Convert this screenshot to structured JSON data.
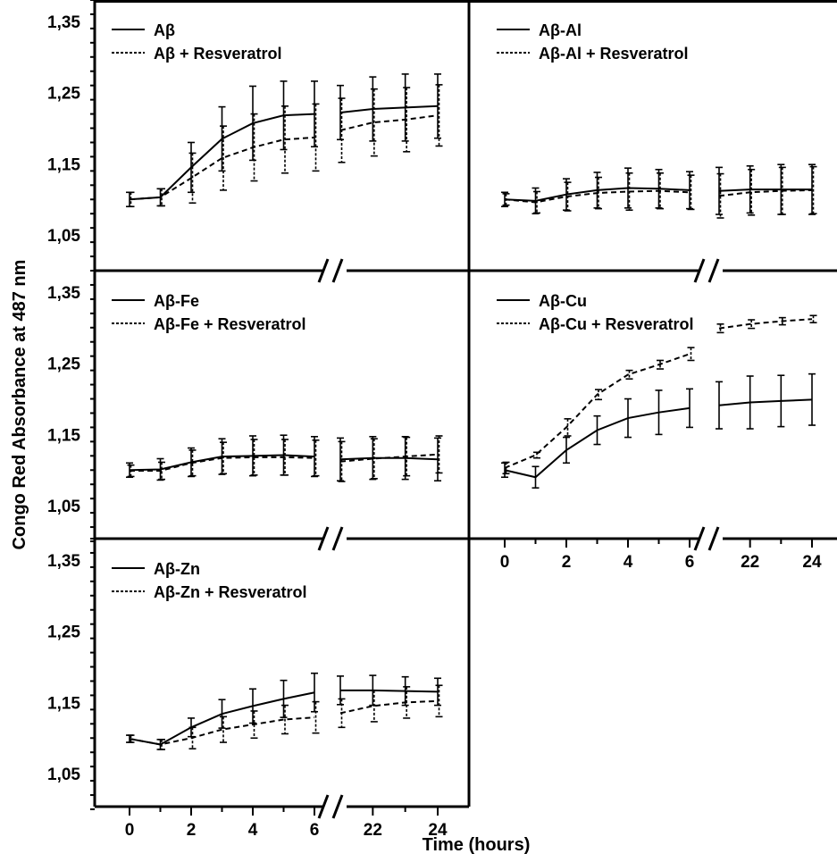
{
  "chart_data": {
    "type": "line",
    "ylabel": "Congo Red Absorbance at 487 nm",
    "xlabel": "Time (hours)",
    "x_tick_labels": [
      "0",
      "2",
      "4",
      "6",
      "22",
      "24"
    ],
    "y_tick_labels": [
      "1,05",
      "1,15",
      "1,25",
      "1,35"
    ],
    "ylim": [
      1.0,
      1.38
    ],
    "x_axis_break": "between 6 and 21 hours",
    "grid": false,
    "legend_placement": "top-left",
    "panels": [
      {
        "id": "ab",
        "series": [
          {
            "name": "Aβ",
            "style": "solid",
            "x": [
              0,
              1,
              2,
              3,
              4,
              5,
              6,
              21,
              22,
              23,
              24
            ],
            "y": [
              1.1,
              1.103,
              1.145,
              1.185,
              1.207,
              1.218,
              1.22,
              1.222,
              1.227,
              1.229,
              1.231
            ],
            "err": [
              0.01,
              0.012,
              0.035,
              0.045,
              0.052,
              0.048,
              0.046,
              0.038,
              0.045,
              0.047,
              0.045
            ]
          },
          {
            "name": "Aβ + Resveratrol",
            "style": "dashed",
            "x": [
              0,
              1,
              2,
              3,
              4,
              5,
              6,
              21,
              22,
              23,
              24
            ],
            "y": [
              1.1,
              1.103,
              1.13,
              1.158,
              1.173,
              1.184,
              1.187,
              1.197,
              1.208,
              1.212,
              1.218
            ],
            "err": [
              0.01,
              0.012,
              0.035,
              0.045,
              0.047,
              0.047,
              0.047,
              0.045,
              0.047,
              0.045,
              0.043
            ]
          }
        ]
      },
      {
        "id": "ab-al",
        "series": [
          {
            "name": "Aβ-Al",
            "style": "solid",
            "x": [
              0,
              1,
              2,
              3,
              4,
              5,
              6,
              21,
              22,
              23,
              24
            ],
            "y": [
              1.1,
              1.098,
              1.107,
              1.113,
              1.116,
              1.115,
              1.113,
              1.112,
              1.114,
              1.114,
              1.114
            ],
            "err": [
              0.01,
              0.018,
              0.022,
              0.025,
              0.028,
              0.027,
              0.026,
              0.033,
              0.033,
              0.035,
              0.035
            ]
          },
          {
            "name": "Aβ-Al + Resveratrol",
            "style": "dashed",
            "x": [
              0,
              1,
              2,
              3,
              4,
              5,
              6,
              21,
              22,
              23,
              24
            ],
            "y": [
              1.1,
              1.096,
              1.104,
              1.109,
              1.111,
              1.112,
              1.11,
              1.105,
              1.11,
              1.112,
              1.113
            ],
            "err": [
              0.008,
              0.015,
              0.02,
              0.022,
              0.026,
              0.025,
              0.024,
              0.031,
              0.032,
              0.033,
              0.033
            ]
          }
        ]
      },
      {
        "id": "ab-fe",
        "series": [
          {
            "name": "Aβ-Fe",
            "style": "solid",
            "x": [
              0,
              1,
              2,
              3,
              4,
              5,
              6,
              21,
              22,
              23,
              24
            ],
            "y": [
              1.1,
              1.101,
              1.111,
              1.119,
              1.12,
              1.121,
              1.119,
              1.115,
              1.117,
              1.117,
              1.115
            ],
            "err": [
              0.01,
              0.015,
              0.02,
              0.025,
              0.028,
              0.028,
              0.028,
              0.03,
              0.03,
              0.03,
              0.03
            ]
          },
          {
            "name": "Aβ-Fe + Resveratrol",
            "style": "dashed",
            "x": [
              0,
              1,
              2,
              3,
              4,
              5,
              6,
              21,
              22,
              23,
              24
            ],
            "y": [
              1.099,
              1.099,
              1.11,
              1.117,
              1.118,
              1.118,
              1.117,
              1.112,
              1.116,
              1.119,
              1.122
            ],
            "err": [
              0.008,
              0.012,
              0.018,
              0.022,
              0.025,
              0.025,
              0.025,
              0.028,
              0.028,
              0.027,
              0.026
            ]
          }
        ]
      },
      {
        "id": "ab-cu",
        "series": [
          {
            "name": "Aβ-Cu",
            "style": "solid",
            "x": [
              0,
              1,
              2,
              3,
              4,
              5,
              6,
              21,
              22,
              23,
              24
            ],
            "y": [
              1.1,
              1.09,
              1.128,
              1.156,
              1.173,
              1.181,
              1.187,
              1.191,
              1.195,
              1.197,
              1.199
            ],
            "err": [
              0.01,
              0.015,
              0.018,
              0.02,
              0.027,
              0.031,
              0.027,
              0.033,
              0.037,
              0.036,
              0.036
            ]
          },
          {
            "name": "Aβ-Cu + Resveratrol",
            "style": "dashed",
            "x": [
              0,
              1,
              2,
              3,
              4,
              5,
              6,
              21,
              22,
              23,
              24
            ],
            "y": [
              1.103,
              1.121,
              1.16,
              1.206,
              1.234,
              1.248,
              1.263,
              1.299,
              1.305,
              1.309,
              1.312
            ],
            "err": [
              0.008,
              0.004,
              0.012,
              0.007,
              0.006,
              0.006,
              0.009,
              0.006,
              0.006,
              0.005,
              0.005
            ]
          }
        ]
      },
      {
        "id": "ab-zn",
        "series": [
          {
            "name": "Aβ-Zn",
            "style": "solid",
            "x": [
              0,
              1,
              2,
              3,
              4,
              5,
              6,
              21,
              22,
              23,
              24
            ],
            "y": [
              1.099,
              1.091,
              1.115,
              1.134,
              1.145,
              1.155,
              1.164,
              1.167,
              1.167,
              1.166,
              1.165
            ],
            "err": [
              0.005,
              0.007,
              0.013,
              0.02,
              0.024,
              0.026,
              0.027,
              0.02,
              0.021,
              0.02,
              0.019
            ]
          },
          {
            "name": "Aβ-Zn + Resveratrol",
            "style": "dashed",
            "x": [
              0,
              1,
              2,
              3,
              4,
              5,
              6,
              21,
              22,
              23,
              24
            ],
            "y": [
              1.099,
              1.091,
              1.1,
              1.112,
              1.119,
              1.126,
              1.129,
              1.135,
              1.145,
              1.15,
              1.152
            ],
            "err": [
              0.005,
              0.007,
              0.015,
              0.018,
              0.019,
              0.02,
              0.022,
              0.02,
              0.022,
              0.022,
              0.022
            ]
          }
        ]
      }
    ]
  }
}
